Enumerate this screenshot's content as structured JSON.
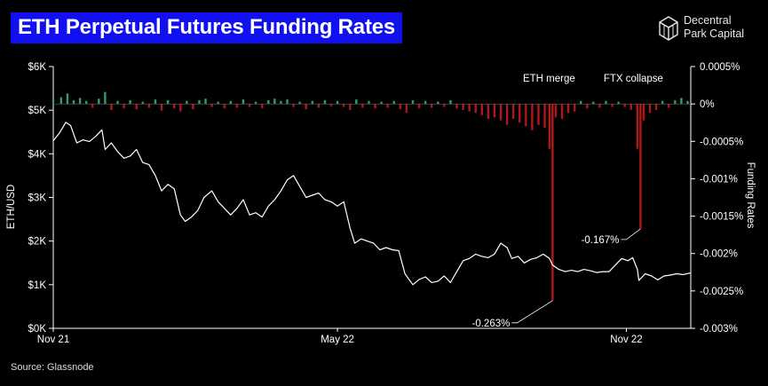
{
  "header": {
    "title": "ETH Perpetual Futures Funding Rates",
    "logo_line1": "Decentral",
    "logo_line2": "Park Capital",
    "logo_icon": "cube-icon"
  },
  "footer": {
    "source": "Source: Glassnode"
  },
  "colors": {
    "background": "#000000",
    "title_bg": "#1010f0",
    "price_line": "#ffffff",
    "positive_rate": "#2e9e6e",
    "negative_rate": "#b01818"
  },
  "chart_data": {
    "type": "line",
    "title": "ETH Perpetual Futures Funding Rates",
    "ylabel": "ETH/USD",
    "y2label": "Funding Rates",
    "xlabel": "",
    "ylim": [
      0,
      6000
    ],
    "y2lim": [
      -0.003,
      0.0005
    ],
    "yticks": [
      "$0K",
      "$1K",
      "$2K",
      "$3K",
      "$4K",
      "$5K",
      "$6K"
    ],
    "y2ticks": [
      "-0.003%",
      "-0.0025%",
      "-0.002%",
      "-0.0015%",
      "-0.001%",
      "-0.0005%",
      "0%",
      "0.0005%"
    ],
    "xticks": [
      {
        "label": "Nov 21",
        "date": "2021-11-01"
      },
      {
        "label": "May 22",
        "date": "2022-05-01"
      },
      {
        "label": "Nov 22",
        "date": "2022-11-01"
      }
    ],
    "xlim": [
      "2021-11-01",
      "2022-12-12"
    ],
    "grid": false,
    "series": [
      {
        "name": "ETH/USD",
        "axis": "left",
        "points": [
          [
            "2021-11-01",
            4300
          ],
          [
            "2021-11-05",
            4480
          ],
          [
            "2021-11-09",
            4720
          ],
          [
            "2021-11-12",
            4650
          ],
          [
            "2021-11-16",
            4250
          ],
          [
            "2021-11-20",
            4320
          ],
          [
            "2021-11-24",
            4280
          ],
          [
            "2021-11-28",
            4400
          ],
          [
            "2021-12-02",
            4550
          ],
          [
            "2021-12-04",
            4100
          ],
          [
            "2021-12-08",
            4250
          ],
          [
            "2021-12-12",
            4050
          ],
          [
            "2021-12-16",
            3900
          ],
          [
            "2021-12-20",
            3950
          ],
          [
            "2021-12-24",
            4100
          ],
          [
            "2021-12-28",
            3800
          ],
          [
            "2022-01-01",
            3750
          ],
          [
            "2022-01-05",
            3500
          ],
          [
            "2022-01-09",
            3150
          ],
          [
            "2022-01-13",
            3300
          ],
          [
            "2022-01-17",
            3200
          ],
          [
            "2022-01-21",
            2600
          ],
          [
            "2022-01-24",
            2450
          ],
          [
            "2022-01-28",
            2550
          ],
          [
            "2022-02-01",
            2700
          ],
          [
            "2022-02-05",
            3000
          ],
          [
            "2022-02-10",
            3150
          ],
          [
            "2022-02-14",
            2900
          ],
          [
            "2022-02-18",
            2750
          ],
          [
            "2022-02-22",
            2600
          ],
          [
            "2022-02-26",
            2750
          ],
          [
            "2022-03-02",
            2950
          ],
          [
            "2022-03-06",
            2600
          ],
          [
            "2022-03-10",
            2650
          ],
          [
            "2022-03-14",
            2550
          ],
          [
            "2022-03-18",
            2800
          ],
          [
            "2022-03-22",
            2950
          ],
          [
            "2022-03-26",
            3150
          ],
          [
            "2022-03-30",
            3400
          ],
          [
            "2022-04-03",
            3500
          ],
          [
            "2022-04-07",
            3250
          ],
          [
            "2022-04-11",
            3000
          ],
          [
            "2022-04-15",
            3050
          ],
          [
            "2022-04-19",
            3100
          ],
          [
            "2022-04-23",
            2950
          ],
          [
            "2022-04-27",
            2900
          ],
          [
            "2022-05-01",
            2800
          ],
          [
            "2022-05-05",
            2900
          ],
          [
            "2022-05-09",
            2300
          ],
          [
            "2022-05-12",
            1950
          ],
          [
            "2022-05-16",
            2050
          ],
          [
            "2022-05-20",
            2000
          ],
          [
            "2022-05-24",
            1950
          ],
          [
            "2022-05-28",
            1800
          ],
          [
            "2022-06-01",
            1850
          ],
          [
            "2022-06-05",
            1800
          ],
          [
            "2022-06-09",
            1780
          ],
          [
            "2022-06-13",
            1250
          ],
          [
            "2022-06-16",
            1100
          ],
          [
            "2022-06-18",
            1000
          ],
          [
            "2022-06-22",
            1120
          ],
          [
            "2022-06-26",
            1180
          ],
          [
            "2022-06-30",
            1050
          ],
          [
            "2022-07-04",
            1080
          ],
          [
            "2022-07-08",
            1200
          ],
          [
            "2022-07-12",
            1050
          ],
          [
            "2022-07-16",
            1300
          ],
          [
            "2022-07-20",
            1550
          ],
          [
            "2022-07-24",
            1600
          ],
          [
            "2022-07-28",
            1700
          ],
          [
            "2022-08-01",
            1650
          ],
          [
            "2022-08-05",
            1620
          ],
          [
            "2022-08-09",
            1700
          ],
          [
            "2022-08-13",
            1950
          ],
          [
            "2022-08-17",
            1850
          ],
          [
            "2022-08-20",
            1600
          ],
          [
            "2022-08-24",
            1650
          ],
          [
            "2022-08-28",
            1500
          ],
          [
            "2022-09-01",
            1580
          ],
          [
            "2022-09-05",
            1620
          ],
          [
            "2022-09-09",
            1700
          ],
          [
            "2022-09-13",
            1600
          ],
          [
            "2022-09-15",
            1450
          ],
          [
            "2022-09-19",
            1350
          ],
          [
            "2022-09-23",
            1300
          ],
          [
            "2022-09-27",
            1330
          ],
          [
            "2022-10-01",
            1300
          ],
          [
            "2022-10-05",
            1350
          ],
          [
            "2022-10-09",
            1320
          ],
          [
            "2022-10-13",
            1280
          ],
          [
            "2022-10-17",
            1300
          ],
          [
            "2022-10-21",
            1300
          ],
          [
            "2022-10-25",
            1450
          ],
          [
            "2022-10-29",
            1600
          ],
          [
            "2022-11-02",
            1550
          ],
          [
            "2022-11-05",
            1620
          ],
          [
            "2022-11-08",
            1350
          ],
          [
            "2022-11-09",
            1100
          ],
          [
            "2022-11-13",
            1250
          ],
          [
            "2022-11-17",
            1200
          ],
          [
            "2022-11-21",
            1110
          ],
          [
            "2022-11-25",
            1200
          ],
          [
            "2022-11-29",
            1220
          ],
          [
            "2022-12-03",
            1250
          ],
          [
            "2022-12-07",
            1230
          ],
          [
            "2022-12-12",
            1270
          ]
        ]
      },
      {
        "name": "Funding Rates",
        "axis": "right",
        "type": "bar",
        "points": [
          [
            "2021-11-01",
            6e-05
          ],
          [
            "2021-11-06",
            9e-05
          ],
          [
            "2021-11-10",
            0.00014
          ],
          [
            "2021-11-14",
            5e-05
          ],
          [
            "2021-11-18",
            8e-05
          ],
          [
            "2021-11-22",
            4e-05
          ],
          [
            "2021-11-26",
            -5e-05
          ],
          [
            "2021-11-30",
            7e-05
          ],
          [
            "2021-12-04",
            0.00016
          ],
          [
            "2021-12-08",
            -8e-05
          ],
          [
            "2021-12-12",
            4e-05
          ],
          [
            "2021-12-16",
            -6e-05
          ],
          [
            "2021-12-20",
            5e-05
          ],
          [
            "2021-12-24",
            -7e-05
          ],
          [
            "2021-12-28",
            3e-05
          ],
          [
            "2022-01-01",
            -5e-05
          ],
          [
            "2022-01-05",
            6e-05
          ],
          [
            "2022-01-09",
            -9e-05
          ],
          [
            "2022-01-13",
            5e-05
          ],
          [
            "2022-01-17",
            -6e-05
          ],
          [
            "2022-01-21",
            -0.0001
          ],
          [
            "2022-01-25",
            4e-05
          ],
          [
            "2022-01-29",
            -7e-05
          ],
          [
            "2022-02-02",
            5e-05
          ],
          [
            "2022-02-06",
            7e-05
          ],
          [
            "2022-02-10",
            -4e-05
          ],
          [
            "2022-02-14",
            3e-05
          ],
          [
            "2022-02-18",
            -6e-05
          ],
          [
            "2022-02-22",
            4e-05
          ],
          [
            "2022-02-26",
            -5e-05
          ],
          [
            "2022-03-02",
            6e-05
          ],
          [
            "2022-03-06",
            -4e-05
          ],
          [
            "2022-03-10",
            3e-05
          ],
          [
            "2022-03-14",
            -6e-05
          ],
          [
            "2022-03-18",
            5e-05
          ],
          [
            "2022-03-22",
            7e-05
          ],
          [
            "2022-03-26",
            4e-05
          ],
          [
            "2022-03-30",
            6e-05
          ],
          [
            "2022-04-03",
            -4e-05
          ],
          [
            "2022-04-07",
            3e-05
          ],
          [
            "2022-04-11",
            -7e-05
          ],
          [
            "2022-04-15",
            4e-05
          ],
          [
            "2022-04-19",
            -5e-05
          ],
          [
            "2022-04-23",
            5e-05
          ],
          [
            "2022-04-27",
            -3e-05
          ],
          [
            "2022-05-01",
            4e-05
          ],
          [
            "2022-05-05",
            -4e-05
          ],
          [
            "2022-05-09",
            -8e-05
          ],
          [
            "2022-05-13",
            6e-05
          ],
          [
            "2022-05-17",
            -5e-05
          ],
          [
            "2022-05-21",
            4e-05
          ],
          [
            "2022-05-25",
            -6e-05
          ],
          [
            "2022-05-29",
            3e-05
          ],
          [
            "2022-06-02",
            -5e-05
          ],
          [
            "2022-06-06",
            4e-05
          ],
          [
            "2022-06-10",
            -7e-05
          ],
          [
            "2022-06-14",
            -0.00012
          ],
          [
            "2022-06-18",
            5e-05
          ],
          [
            "2022-06-22",
            -6e-05
          ],
          [
            "2022-06-26",
            4e-05
          ],
          [
            "2022-06-30",
            -5e-05
          ],
          [
            "2022-07-04",
            3e-05
          ],
          [
            "2022-07-08",
            -4e-05
          ],
          [
            "2022-07-12",
            5e-05
          ],
          [
            "2022-07-16",
            -6e-05
          ],
          [
            "2022-07-20",
            -8e-05
          ],
          [
            "2022-07-24",
            -0.0001
          ],
          [
            "2022-07-28",
            -0.00012
          ],
          [
            "2022-08-01",
            -0.00015
          ],
          [
            "2022-08-05",
            -0.0002
          ],
          [
            "2022-08-09",
            -0.00018
          ],
          [
            "2022-08-13",
            -0.00022
          ],
          [
            "2022-08-17",
            -0.00028
          ],
          [
            "2022-08-21",
            -0.0002
          ],
          [
            "2022-08-25",
            -0.00025
          ],
          [
            "2022-08-29",
            -0.0003
          ],
          [
            "2022-09-02",
            -0.00035
          ],
          [
            "2022-09-06",
            -0.00028
          ],
          [
            "2022-09-10",
            -0.00032
          ],
          [
            "2022-09-13",
            -0.0006
          ],
          [
            "2022-09-15",
            -0.00263
          ],
          [
            "2022-09-17",
            -0.00018
          ],
          [
            "2022-09-21",
            -0.0002
          ],
          [
            "2022-09-25",
            -0.00012
          ],
          [
            "2022-09-29",
            -0.0001
          ],
          [
            "2022-10-03",
            4e-05
          ],
          [
            "2022-10-07",
            -6e-05
          ],
          [
            "2022-10-11",
            3e-05
          ],
          [
            "2022-10-15",
            -5e-05
          ],
          [
            "2022-10-19",
            4e-05
          ],
          [
            "2022-10-23",
            -4e-05
          ],
          [
            "2022-10-27",
            3e-05
          ],
          [
            "2022-10-31",
            -4e-05
          ],
          [
            "2022-11-04",
            -8e-05
          ],
          [
            "2022-11-08",
            -0.0006
          ],
          [
            "2022-11-10",
            -0.00167
          ],
          [
            "2022-11-12",
            -0.00022
          ],
          [
            "2022-11-16",
            -0.00012
          ],
          [
            "2022-11-20",
            -8e-05
          ],
          [
            "2022-11-24",
            4e-05
          ],
          [
            "2022-11-28",
            -5e-05
          ],
          [
            "2022-12-02",
            5e-05
          ],
          [
            "2022-12-06",
            8e-05
          ],
          [
            "2022-12-10",
            4e-05
          ]
        ]
      }
    ],
    "annotations": [
      {
        "text": "ETH merge",
        "date": "2022-09-15"
      },
      {
        "text": "FTX collapse",
        "date": "2022-11-10"
      },
      {
        "text": "-0.263%",
        "date": "2022-09-15",
        "value": -0.00263
      },
      {
        "text": "-0.167%",
        "date": "2022-11-10",
        "value": -0.00167
      }
    ]
  }
}
